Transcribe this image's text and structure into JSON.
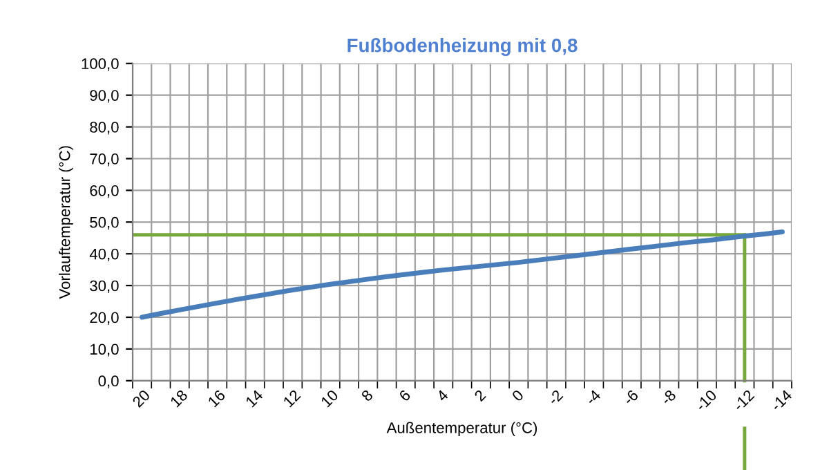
{
  "chart_data": {
    "type": "line",
    "title": "Fußbodenheizung mit 0,8",
    "xlabel": "Außentemperatur (°C)",
    "ylabel": "Vorlauftemperatur (°C)",
    "categories": [
      "20",
      null,
      "18",
      null,
      "16",
      null,
      "14",
      null,
      "12",
      null,
      "10",
      null,
      "8",
      null,
      "6",
      null,
      "4",
      null,
      "2",
      null,
      "0",
      null,
      "-2",
      null,
      "-4",
      null,
      "-6",
      null,
      "-8",
      null,
      "-10",
      null,
      "-12",
      null,
      "-14"
    ],
    "series": [
      {
        "color": "#4a7ebb",
        "values": [
          20.0,
          21.2,
          22.3,
          23.4,
          24.5,
          25.6,
          26.6,
          27.6,
          28.6,
          29.5,
          30.4,
          31.2,
          32.0,
          32.8,
          33.5,
          34.2,
          34.9,
          35.5,
          36.1,
          36.7,
          37.3,
          38.0,
          38.7,
          39.4,
          40.1,
          40.8,
          41.5,
          42.2,
          42.9,
          43.6,
          44.2,
          44.9,
          45.6,
          46.2,
          46.9
        ]
      }
    ],
    "ylim": [
      0,
      100
    ],
    "yticks": [
      {
        "value": 0,
        "label": "0,0"
      },
      {
        "value": 10,
        "label": "10,0"
      },
      {
        "value": 20,
        "label": "20,0"
      },
      {
        "value": 30,
        "label": "30,0"
      },
      {
        "value": 40,
        "label": "40,0"
      },
      {
        "value": 50,
        "label": "50,0"
      },
      {
        "value": 60,
        "label": "60,0"
      },
      {
        "value": 70,
        "label": "70,0"
      },
      {
        "value": 80,
        "label": "80,0"
      },
      {
        "value": 90,
        "label": "90,0"
      },
      {
        "value": 100,
        "label": "100,0"
      }
    ],
    "ref_lines": [
      {
        "axis": "y",
        "value": 46,
        "color": "#77a83c"
      },
      {
        "axis": "x",
        "value": "-12",
        "color": "#77a83c"
      }
    ],
    "grid": true,
    "marker": "none",
    "line_style": "solid",
    "legend": false
  }
}
